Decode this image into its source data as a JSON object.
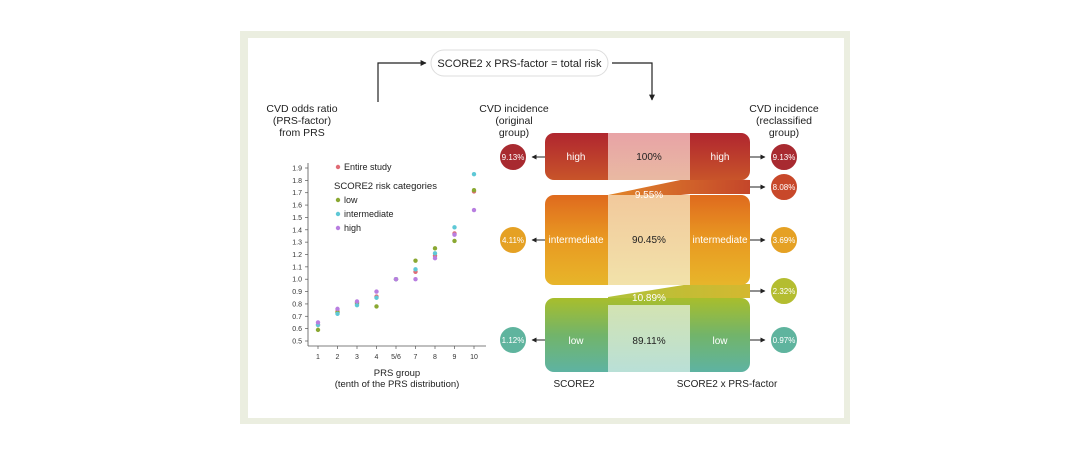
{
  "formula": "SCORE2 x PRS-factor = total risk",
  "left_chart": {
    "ylabel": [
      "CVD odds ratio",
      "(PRS-factor)",
      "from PRS"
    ],
    "xlabel": [
      "PRS group",
      "(tenth of the PRS distribution)"
    ]
  },
  "chart_data": {
    "type": "scatter",
    "categories": [
      "1",
      "2",
      "3",
      "4",
      "5/6",
      "7",
      "8",
      "9",
      "10"
    ],
    "yticks": [
      "1.9",
      "1.8",
      "1.7",
      "1.6",
      "1.5",
      "1.4",
      "1.3",
      "1.2",
      "1.1",
      "1.0",
      "0.9",
      "0.8",
      "0.7",
      "0.6",
      "0.5"
    ],
    "ylim": [
      0.5,
      1.9
    ],
    "legend_title": "SCORE2 risk categories",
    "series": [
      {
        "name": "Entire study",
        "color": "#e06b75",
        "values": [
          0.63,
          0.74,
          0.8,
          0.86,
          1.0,
          1.06,
          1.19,
          1.37,
          1.71
        ]
      },
      {
        "name": "low",
        "color": "#8aa832",
        "values": [
          0.59,
          0.73,
          0.81,
          0.78,
          1.0,
          1.15,
          1.25,
          1.31,
          1.72
        ]
      },
      {
        "name": "intermediate",
        "color": "#5ec8d6",
        "values": [
          0.63,
          0.72,
          0.79,
          0.85,
          1.0,
          1.08,
          1.21,
          1.42,
          1.85
        ]
      },
      {
        "name": "high",
        "color": "#b87ee0",
        "values": [
          0.65,
          0.76,
          0.82,
          0.9,
          1.0,
          1.0,
          1.17,
          1.36,
          1.56
        ]
      }
    ]
  },
  "flow": {
    "left_header": [
      "CVD incidence",
      "(original",
      "group)"
    ],
    "right_header": [
      "CVD incidence",
      "(reclassified",
      "group)"
    ],
    "bottom_left": "SCORE2",
    "bottom_right": "SCORE2 x PRS-factor",
    "rows": [
      {
        "left_label": "high",
        "mid": "100%",
        "right_label": "high",
        "left_incidence": "9.13%",
        "right_incidence": "9.13%"
      },
      {
        "left_label": "intermediate",
        "mid": "90.45%",
        "right_label": "intermediate",
        "left_incidence": "4.11%",
        "right_incidence": "3.69%"
      },
      {
        "left_label": "low",
        "mid": "89.11%",
        "right_label": "low",
        "left_incidence": "1.12%",
        "right_incidence": "0.97%"
      }
    ],
    "transfers": [
      {
        "label": "9.55%",
        "incidence": "8.08%"
      },
      {
        "label": "10.89%",
        "incidence": "2.32%"
      }
    ]
  }
}
